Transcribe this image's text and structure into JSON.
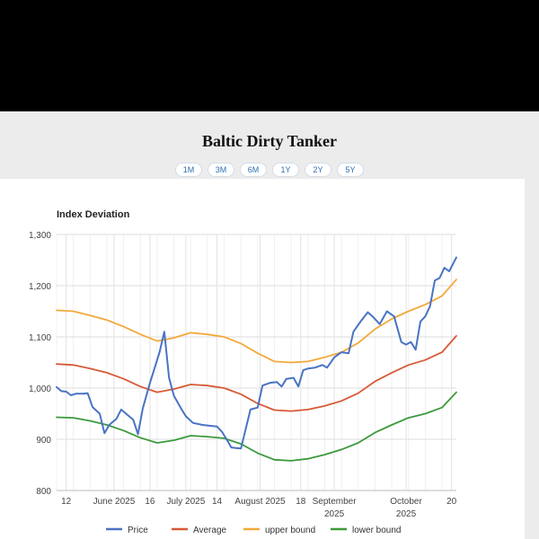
{
  "page": {
    "title": "Baltic Dirty Tanker"
  },
  "range_buttons": [
    {
      "label": "1M"
    },
    {
      "label": "3M"
    },
    {
      "label": "6M"
    },
    {
      "label": "1Y"
    },
    {
      "label": "2Y"
    },
    {
      "label": "5Y"
    }
  ],
  "colors": {
    "price": "#4a73c4",
    "average": "#d65a36",
    "upper": "#f2a93b",
    "lower": "#3c9a3c"
  },
  "chart_data": {
    "type": "line",
    "title": "Index Deviation",
    "xlabel": "",
    "ylabel": "",
    "ylim": [
      800,
      1300
    ],
    "yticks": [
      800,
      900,
      1000,
      1100,
      1200,
      1300
    ],
    "ytick_labels": [
      "800",
      "900",
      "1,000",
      "1,100",
      "1,200",
      "1,300"
    ],
    "grid": true,
    "legend_position": "bottom",
    "xlim": [
      "2025-05-08",
      "2025-10-22"
    ],
    "x_ticks": [
      {
        "date": "2025-05-12",
        "label": "12"
      },
      {
        "date": "2025-06-01",
        "label": "June 2025"
      },
      {
        "date": "2025-06-16",
        "label": "16"
      },
      {
        "date": "2025-07-01",
        "label": "July 2025"
      },
      {
        "date": "2025-07-14",
        "label": "14"
      },
      {
        "date": "2025-08-01",
        "label": "August 2025"
      },
      {
        "date": "2025-08-18",
        "label": "18"
      },
      {
        "date": "2025-09-01",
        "label": "September 2025"
      },
      {
        "date": "2025-10-01",
        "label": "October 2025"
      },
      {
        "date": "2025-10-20",
        "label": "20"
      }
    ],
    "series": [
      {
        "name": "Price",
        "color": "#4a73c4",
        "points": [
          [
            "2025-05-08",
            1002
          ],
          [
            "2025-05-10",
            994
          ],
          [
            "2025-05-12",
            993
          ],
          [
            "2025-05-14",
            986
          ],
          [
            "2025-05-16",
            989
          ],
          [
            "2025-05-19",
            989
          ],
          [
            "2025-05-21",
            990
          ],
          [
            "2025-05-23",
            963
          ],
          [
            "2025-05-26",
            950
          ],
          [
            "2025-05-28",
            912
          ],
          [
            "2025-05-30",
            928
          ],
          [
            "2025-06-02",
            940
          ],
          [
            "2025-06-04",
            958
          ],
          [
            "2025-06-06",
            950
          ],
          [
            "2025-06-09",
            938
          ],
          [
            "2025-06-11",
            910
          ],
          [
            "2025-06-13",
            960
          ],
          [
            "2025-06-16",
            1010
          ],
          [
            "2025-06-18",
            1040
          ],
          [
            "2025-06-20",
            1070
          ],
          [
            "2025-06-22",
            1110
          ],
          [
            "2025-06-24",
            1020
          ],
          [
            "2025-06-26",
            985
          ],
          [
            "2025-06-29",
            960
          ],
          [
            "2025-07-01",
            945
          ],
          [
            "2025-07-04",
            932
          ],
          [
            "2025-07-08",
            928
          ],
          [
            "2025-07-12",
            926
          ],
          [
            "2025-07-14",
            925
          ],
          [
            "2025-07-16",
            915
          ],
          [
            "2025-07-18",
            900
          ],
          [
            "2025-07-20",
            884
          ],
          [
            "2025-07-22",
            883
          ],
          [
            "2025-07-24",
            882
          ],
          [
            "2025-07-26",
            920
          ],
          [
            "2025-07-28",
            958
          ],
          [
            "2025-07-31",
            962
          ],
          [
            "2025-08-02",
            1005
          ],
          [
            "2025-08-05",
            1010
          ],
          [
            "2025-08-08",
            1012
          ],
          [
            "2025-08-10",
            1003
          ],
          [
            "2025-08-12",
            1018
          ],
          [
            "2025-08-15",
            1020
          ],
          [
            "2025-08-17",
            1003
          ],
          [
            "2025-08-19",
            1035
          ],
          [
            "2025-08-21",
            1038
          ],
          [
            "2025-08-24",
            1040
          ],
          [
            "2025-08-27",
            1045
          ],
          [
            "2025-08-29",
            1040
          ],
          [
            "2025-09-01",
            1060
          ],
          [
            "2025-09-04",
            1070
          ],
          [
            "2025-09-07",
            1068
          ],
          [
            "2025-09-09",
            1110
          ],
          [
            "2025-09-12",
            1130
          ],
          [
            "2025-09-15",
            1148
          ],
          [
            "2025-09-17",
            1140
          ],
          [
            "2025-09-20",
            1125
          ],
          [
            "2025-09-23",
            1150
          ],
          [
            "2025-09-26",
            1140
          ],
          [
            "2025-09-29",
            1090
          ],
          [
            "2025-10-01",
            1085
          ],
          [
            "2025-10-03",
            1090
          ],
          [
            "2025-10-05",
            1075
          ],
          [
            "2025-10-07",
            1130
          ],
          [
            "2025-10-09",
            1140
          ],
          [
            "2025-10-11",
            1160
          ],
          [
            "2025-10-13",
            1210
          ],
          [
            "2025-10-15",
            1215
          ],
          [
            "2025-10-17",
            1235
          ],
          [
            "2025-10-19",
            1228
          ],
          [
            "2025-10-22",
            1255
          ]
        ]
      },
      {
        "name": "Average",
        "color": "#d65a36",
        "points": [
          [
            "2025-05-08",
            1047
          ],
          [
            "2025-05-15",
            1045
          ],
          [
            "2025-05-22",
            1038
          ],
          [
            "2025-05-29",
            1030
          ],
          [
            "2025-06-05",
            1018
          ],
          [
            "2025-06-12",
            1003
          ],
          [
            "2025-06-19",
            992
          ],
          [
            "2025-06-26",
            998
          ],
          [
            "2025-07-03",
            1007
          ],
          [
            "2025-07-10",
            1005
          ],
          [
            "2025-07-17",
            1000
          ],
          [
            "2025-07-24",
            988
          ],
          [
            "2025-07-31",
            970
          ],
          [
            "2025-08-07",
            957
          ],
          [
            "2025-08-14",
            955
          ],
          [
            "2025-08-21",
            958
          ],
          [
            "2025-08-28",
            965
          ],
          [
            "2025-09-04",
            975
          ],
          [
            "2025-09-11",
            990
          ],
          [
            "2025-09-18",
            1013
          ],
          [
            "2025-09-25",
            1030
          ],
          [
            "2025-10-02",
            1045
          ],
          [
            "2025-10-09",
            1055
          ],
          [
            "2025-10-16",
            1070
          ],
          [
            "2025-10-22",
            1102
          ]
        ]
      },
      {
        "name": "upper bound",
        "color": "#f2a93b",
        "points": [
          [
            "2025-05-08",
            1152
          ],
          [
            "2025-05-15",
            1150
          ],
          [
            "2025-05-22",
            1142
          ],
          [
            "2025-05-29",
            1133
          ],
          [
            "2025-06-05",
            1120
          ],
          [
            "2025-06-12",
            1105
          ],
          [
            "2025-06-19",
            1092
          ],
          [
            "2025-06-26",
            1098
          ],
          [
            "2025-07-03",
            1108
          ],
          [
            "2025-07-10",
            1105
          ],
          [
            "2025-07-17",
            1100
          ],
          [
            "2025-07-24",
            1087
          ],
          [
            "2025-07-31",
            1068
          ],
          [
            "2025-08-07",
            1052
          ],
          [
            "2025-08-14",
            1050
          ],
          [
            "2025-08-21",
            1052
          ],
          [
            "2025-08-28",
            1060
          ],
          [
            "2025-09-04",
            1070
          ],
          [
            "2025-09-11",
            1088
          ],
          [
            "2025-09-18",
            1115
          ],
          [
            "2025-09-25",
            1135
          ],
          [
            "2025-10-02",
            1150
          ],
          [
            "2025-10-09",
            1163
          ],
          [
            "2025-10-16",
            1180
          ],
          [
            "2025-10-22",
            1212
          ]
        ]
      },
      {
        "name": "lower bound",
        "color": "#3c9a3c",
        "points": [
          [
            "2025-05-08",
            943
          ],
          [
            "2025-05-15",
            942
          ],
          [
            "2025-05-22",
            936
          ],
          [
            "2025-05-29",
            928
          ],
          [
            "2025-06-05",
            917
          ],
          [
            "2025-06-12",
            903
          ],
          [
            "2025-06-19",
            893
          ],
          [
            "2025-06-26",
            898
          ],
          [
            "2025-07-03",
            907
          ],
          [
            "2025-07-10",
            905
          ],
          [
            "2025-07-17",
            902
          ],
          [
            "2025-07-24",
            891
          ],
          [
            "2025-07-31",
            873
          ],
          [
            "2025-08-07",
            860
          ],
          [
            "2025-08-14",
            858
          ],
          [
            "2025-08-21",
            862
          ],
          [
            "2025-08-28",
            870
          ],
          [
            "2025-09-04",
            880
          ],
          [
            "2025-09-11",
            893
          ],
          [
            "2025-09-18",
            913
          ],
          [
            "2025-09-25",
            928
          ],
          [
            "2025-10-02",
            942
          ],
          [
            "2025-10-09",
            950
          ],
          [
            "2025-10-16",
            962
          ],
          [
            "2025-10-22",
            992
          ]
        ]
      }
    ]
  }
}
